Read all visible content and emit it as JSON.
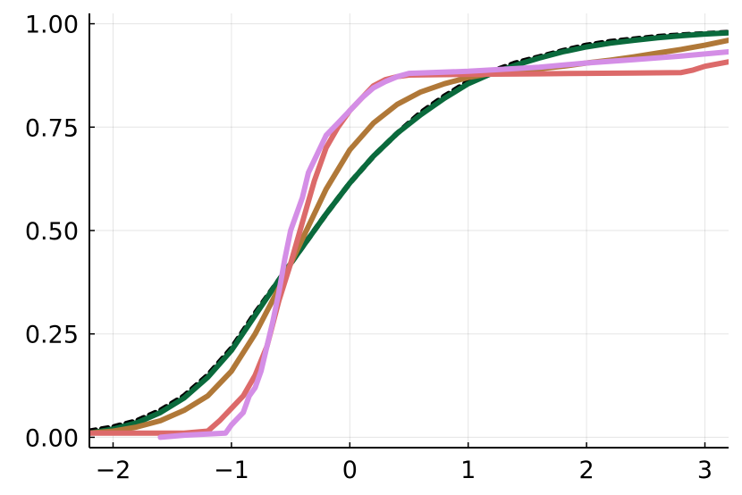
{
  "chart_data": {
    "type": "line",
    "title": "",
    "xlabel": "",
    "ylabel": "",
    "xlim": [
      -2.2,
      3.2
    ],
    "ylim": [
      -0.025,
      1.025
    ],
    "x_ticks": [
      -2,
      -1,
      0,
      1,
      2,
      3
    ],
    "x_tick_labels": [
      "−2",
      "−1",
      "0",
      "1",
      "2",
      "3"
    ],
    "y_ticks": [
      0.0,
      0.25,
      0.5,
      0.75,
      1.0
    ],
    "y_tick_labels": [
      "0.00",
      "0.25",
      "0.50",
      "0.75",
      "1.00"
    ],
    "grid": true,
    "legend": "none",
    "series": [
      {
        "color": "#000000",
        "dashed": true,
        "x": [
          -2.2,
          -2.0,
          -1.8,
          -1.6,
          -1.4,
          -1.2,
          -1.0,
          -0.8,
          -0.6,
          -0.4,
          -0.2,
          0.0,
          0.2,
          0.4,
          0.6,
          0.8,
          1.0,
          1.2,
          1.4,
          1.6,
          1.8,
          2.0,
          2.2,
          2.4,
          2.6,
          2.8,
          3.0,
          3.2
        ],
        "y": [
          0.015,
          0.025,
          0.04,
          0.065,
          0.1,
          0.15,
          0.215,
          0.3,
          0.38,
          0.46,
          0.54,
          0.615,
          0.68,
          0.735,
          0.785,
          0.825,
          0.86,
          0.885,
          0.905,
          0.92,
          0.935,
          0.948,
          0.957,
          0.963,
          0.969,
          0.973,
          0.976,
          0.979
        ]
      },
      {
        "color": "#0a6a3c",
        "dashed": false,
        "x": [
          -2.2,
          -2.0,
          -1.8,
          -1.6,
          -1.4,
          -1.2,
          -1.0,
          -0.8,
          -0.6,
          -0.4,
          -0.2,
          0.0,
          0.2,
          0.4,
          0.6,
          0.8,
          1.0,
          1.2,
          1.4,
          1.6,
          1.8,
          2.0,
          2.2,
          2.4,
          2.6,
          2.8,
          3.0,
          3.2
        ],
        "y": [
          0.01,
          0.02,
          0.035,
          0.06,
          0.095,
          0.145,
          0.21,
          0.295,
          0.38,
          0.46,
          0.54,
          0.615,
          0.68,
          0.735,
          0.78,
          0.82,
          0.855,
          0.88,
          0.9,
          0.917,
          0.932,
          0.944,
          0.953,
          0.96,
          0.966,
          0.971,
          0.975,
          0.978
        ]
      },
      {
        "color": "#b07838",
        "dashed": false,
        "x": [
          -2.2,
          -2.0,
          -1.8,
          -1.6,
          -1.4,
          -1.2,
          -1.0,
          -0.8,
          -0.6,
          -0.4,
          -0.2,
          0.0,
          0.2,
          0.4,
          0.6,
          0.8,
          1.0,
          1.2,
          1.4,
          1.6,
          1.8,
          2.0,
          2.2,
          2.4,
          2.6,
          2.8,
          3.0,
          3.2
        ],
        "y": [
          0.01,
          0.015,
          0.025,
          0.04,
          0.065,
          0.1,
          0.16,
          0.25,
          0.36,
          0.48,
          0.6,
          0.695,
          0.76,
          0.805,
          0.835,
          0.855,
          0.87,
          0.88,
          0.886,
          0.891,
          0.897,
          0.905,
          0.912,
          0.92,
          0.929,
          0.938,
          0.948,
          0.96
        ]
      },
      {
        "color": "#dc6a6a",
        "dashed": false,
        "x": [
          -2.2,
          -1.4,
          -1.2,
          -1.1,
          -1.0,
          -0.9,
          -0.8,
          -0.7,
          -0.6,
          -0.5,
          -0.4,
          -0.3,
          -0.2,
          -0.1,
          0.0,
          0.1,
          0.2,
          0.3,
          0.4,
          0.5,
          0.8,
          1.2,
          1.6,
          2.0,
          2.4,
          2.8,
          2.9,
          3.0,
          3.2
        ],
        "y": [
          0.01,
          0.01,
          0.015,
          0.04,
          0.07,
          0.1,
          0.15,
          0.22,
          0.33,
          0.42,
          0.52,
          0.62,
          0.7,
          0.75,
          0.79,
          0.82,
          0.85,
          0.865,
          0.872,
          0.876,
          0.877,
          0.878,
          0.879,
          0.88,
          0.881,
          0.882,
          0.888,
          0.897,
          0.908
        ]
      },
      {
        "color": "#d48ee6",
        "dashed": false,
        "x": [
          -1.6,
          -1.4,
          -1.2,
          -1.05,
          -1.0,
          -0.95,
          -0.9,
          -0.85,
          -0.8,
          -0.75,
          -0.7,
          -0.65,
          -0.6,
          -0.55,
          -0.5,
          -0.45,
          -0.4,
          -0.35,
          -0.3,
          -0.25,
          -0.2,
          -0.1,
          0.0,
          0.1,
          0.2,
          0.3,
          0.4,
          0.5,
          1.0,
          1.6,
          2.0,
          2.4,
          2.8,
          3.2
        ],
        "y": [
          0.0,
          0.005,
          0.008,
          0.01,
          0.03,
          0.045,
          0.06,
          0.1,
          0.12,
          0.16,
          0.22,
          0.28,
          0.35,
          0.43,
          0.5,
          0.54,
          0.58,
          0.64,
          0.67,
          0.7,
          0.73,
          0.76,
          0.79,
          0.82,
          0.845,
          0.86,
          0.872,
          0.88,
          0.885,
          0.895,
          0.905,
          0.913,
          0.922,
          0.932
        ]
      }
    ]
  }
}
